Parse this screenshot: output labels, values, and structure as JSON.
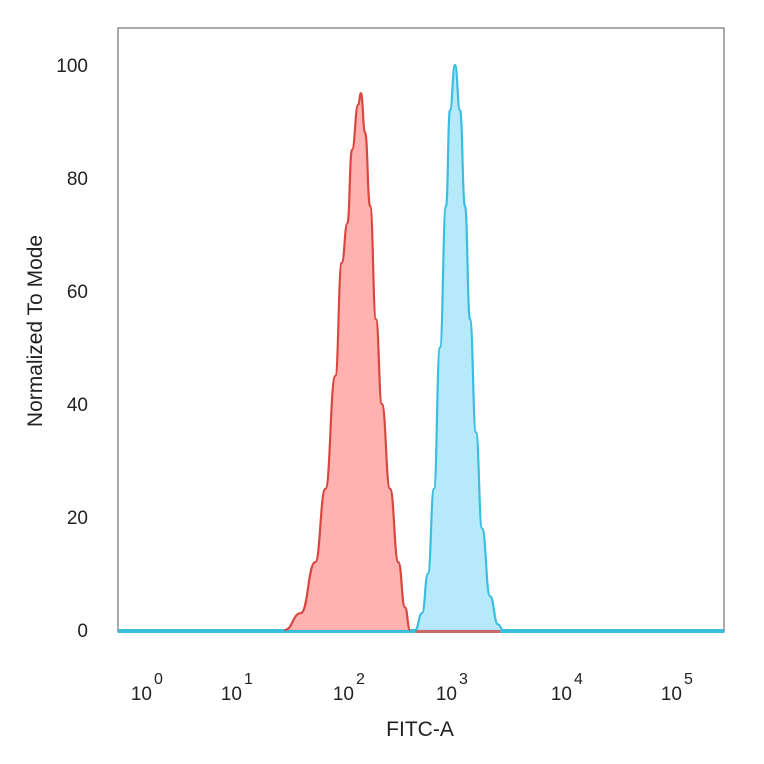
{
  "chart_data": {
    "type": "area",
    "xlabel": "FITC-A",
    "ylabel": "Normalized To Mode",
    "x_scale": "log",
    "ylim": [
      0,
      100
    ],
    "y_ticks": [
      "0",
      "20",
      "40",
      "60",
      "80",
      "100"
    ],
    "x_ticks": [
      {
        "base": "10",
        "exp": "0"
      },
      {
        "base": "10",
        "exp": "1"
      },
      {
        "base": "10",
        "exp": "2"
      },
      {
        "base": "10",
        "exp": "3"
      },
      {
        "base": "10",
        "exp": "4"
      },
      {
        "base": "10",
        "exp": "5"
      }
    ],
    "grid": false,
    "series": [
      {
        "color": "#d9473f",
        "fill": "#ffaaa6",
        "x": [
          25,
          35,
          47,
          58,
          71,
          81,
          91,
          100,
          115,
          122,
          134,
          150,
          171,
          195,
          234,
          282,
          327,
          366
        ],
        "y": [
          0,
          3,
          12,
          25,
          45,
          65,
          72,
          85,
          93,
          95,
          88,
          75,
          55,
          40,
          25,
          12,
          4,
          0
        ]
      },
      {
        "color": "#3bbde0",
        "fill": "#aee8fb",
        "x": [
          410,
          479,
          547,
          625,
          715,
          818,
          894,
          1000,
          1105,
          1222,
          1350,
          1523,
          1718,
          2015,
          2366,
          2614
        ],
        "y": [
          0,
          3,
          10,
          25,
          50,
          75,
          92,
          100,
          92,
          75,
          55,
          35,
          18,
          6,
          1,
          0
        ]
      }
    ]
  }
}
